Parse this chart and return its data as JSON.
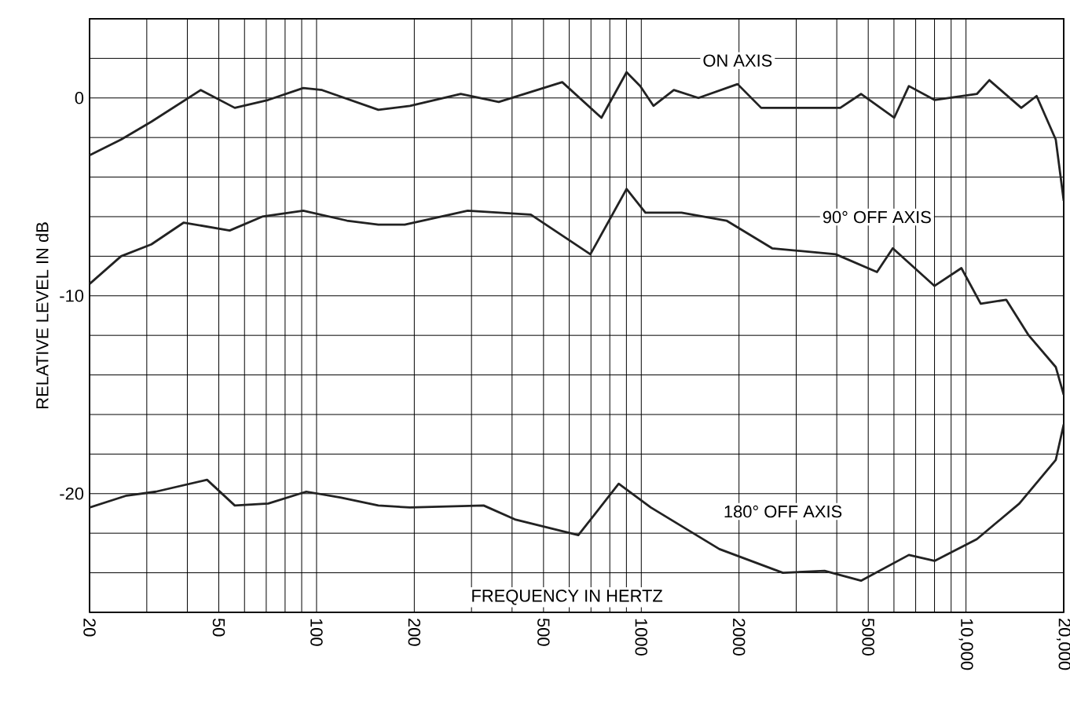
{
  "chart_data": {
    "type": "line",
    "log": "x",
    "grid": true,
    "marker": "none",
    "line_style": "solid",
    "xlabel": "FREQUENCY IN HERTZ",
    "ylabel": "RELATIVE LEVEL IN dB",
    "xlim": [
      20,
      20000
    ],
    "ylim": [
      -26,
      4
    ],
    "xticks": [
      20,
      {
        "value": 30,
        "label": null
      },
      {
        "value": 40,
        "label": null
      },
      50,
      {
        "value": 60,
        "label": null
      },
      {
        "value": 70,
        "label": null
      },
      {
        "value": 80,
        "label": null
      },
      {
        "value": 90,
        "label": null
      },
      100,
      200,
      {
        "value": 300,
        "label": null
      },
      {
        "value": 400,
        "label": null
      },
      500,
      {
        "value": 600,
        "label": null
      },
      {
        "value": 700,
        "label": null
      },
      {
        "value": 800,
        "label": null
      },
      {
        "value": 900,
        "label": null
      },
      1000,
      2000,
      {
        "value": 3000,
        "label": null
      },
      {
        "value": 4000,
        "label": null
      },
      5000,
      {
        "value": 6000,
        "label": null
      },
      {
        "value": 7000,
        "label": null
      },
      {
        "value": 8000,
        "label": null
      },
      {
        "value": 9000,
        "label": null
      },
      {
        "value": 10000,
        "label": "10,000"
      },
      {
        "value": 20000,
        "label": "20,000"
      }
    ],
    "yticks": [
      {
        "value": -26,
        "label": null
      },
      {
        "value": -24,
        "label": null
      },
      {
        "value": -22,
        "label": null
      },
      -20,
      {
        "value": -18,
        "label": null
      },
      {
        "value": -16,
        "label": null
      },
      {
        "value": -14,
        "label": null
      },
      {
        "value": -12,
        "label": null
      },
      -10,
      {
        "value": -8,
        "label": null
      },
      {
        "value": -6,
        "label": null
      },
      {
        "value": -4,
        "label": null
      },
      {
        "value": -2,
        "label": null
      },
      0,
      {
        "value": 2,
        "label": null
      },
      {
        "value": 4,
        "label": null
      }
    ],
    "series": [
      {
        "name": "ON AXIS",
        "color": "#222222",
        "x": [
          20,
          25,
          31,
          44,
          56,
          71,
          91,
          104,
          155,
          194,
          278,
          364,
          571,
          754,
          901,
          993,
          1090,
          1260,
          1500,
          1980,
          2340,
          4100,
          4750,
          6010,
          6670,
          8000,
          10800,
          11800,
          14800,
          16500,
          18900,
          20000
        ],
        "values": [
          -2.9,
          -2.1,
          -1.2,
          0.4,
          -0.5,
          -0.1,
          0.5,
          0.4,
          -0.6,
          -0.4,
          0.2,
          -0.2,
          0.8,
          -1.0,
          1.3,
          0.6,
          -0.4,
          0.4,
          0,
          0.7,
          -0.5,
          -0.5,
          0.2,
          -1.0,
          0.6,
          -0.1,
          0.2,
          0.9,
          -0.5,
          0.1,
          -2.1,
          -5.2
        ]
      },
      {
        "name": "90° OFF AXIS",
        "color": "#222222",
        "x": [
          20,
          25,
          31,
          39,
          54,
          68,
          91,
          124,
          155,
          187,
          292,
          457,
          697,
          901,
          1030,
          1330,
          1830,
          2530,
          3970,
          5320,
          5950,
          8000,
          9680,
          11100,
          13300,
          15600,
          18900,
          20000
        ],
        "values": [
          -9.4,
          -8.0,
          -7.4,
          -6.3,
          -6.7,
          -6.0,
          -5.7,
          -6.2,
          -6.4,
          -6.4,
          -5.7,
          -5.9,
          -7.9,
          -4.6,
          -5.8,
          -5.8,
          -6.2,
          -7.6,
          -7.9,
          -8.8,
          -7.6,
          -9.5,
          -8.6,
          -10.4,
          -10.2,
          -12.0,
          -13.6,
          -15.0
        ]
      },
      {
        "name": "180° OFF AXIS",
        "color": "#222222",
        "x": [
          20,
          26,
          32,
          46,
          56,
          71,
          93,
          119,
          155,
          194,
          327,
          408,
          640,
          852,
          1070,
          1740,
          2730,
          3670,
          4750,
          6670,
          8000,
          10800,
          14600,
          18900,
          20000
        ],
        "values": [
          -20.7,
          -20.1,
          -19.9,
          -19.3,
          -20.6,
          -20.5,
          -19.9,
          -20.2,
          -20.6,
          -20.7,
          -20.6,
          -21.3,
          -22.1,
          -19.5,
          -20.7,
          -22.8,
          -24.0,
          -23.9,
          -24.4,
          -23.1,
          -23.4,
          -22.3,
          -20.5,
          -18.3,
          -16.5
        ]
      }
    ]
  }
}
